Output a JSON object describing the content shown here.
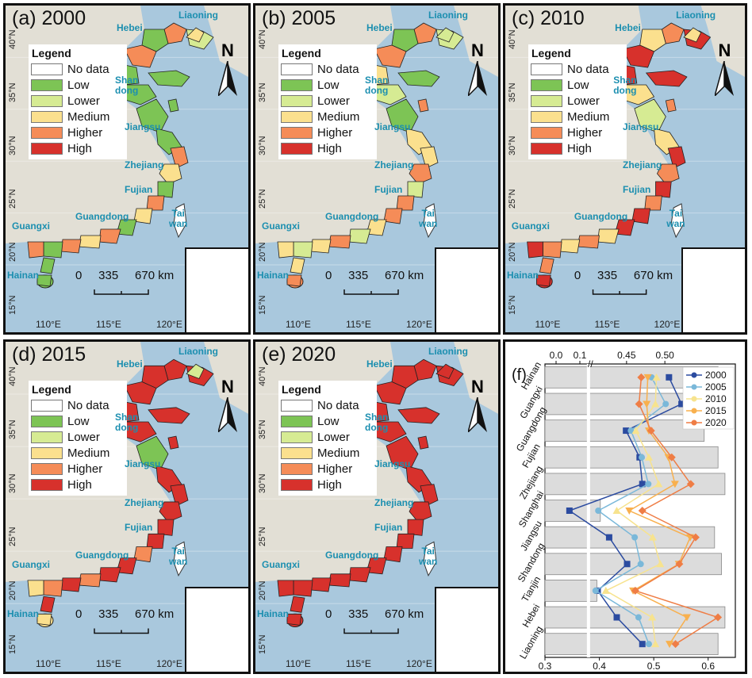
{
  "legend": {
    "title": "Legend",
    "items": [
      {
        "label": "No data",
        "color": "#ffffff"
      },
      {
        "label": "Low",
        "color": "#7dc455"
      },
      {
        "label": "Lower",
        "color": "#d6eb93"
      },
      {
        "label": "Medium",
        "color": "#fbe08e"
      },
      {
        "label": "Higher",
        "color": "#f58c58"
      },
      {
        "label": "High",
        "color": "#d7312c"
      }
    ]
  },
  "maps": [
    {
      "title": "(a) 2000"
    },
    {
      "title": "(b) 2005"
    },
    {
      "title": "(c) 2010"
    },
    {
      "title": "(d) 2015"
    },
    {
      "title": "(e) 2020"
    }
  ],
  "provinces": {
    "liaoning": "Liaoning",
    "hebei": "Hebei",
    "shandong": "Shan\ndong",
    "jiangsu": "Jiangsu",
    "zhejiang": "Zhejiang",
    "fujian": "Fujian",
    "guangdong": "Guangdong",
    "guangxi": "Guangxi",
    "taiwan": "Tai\nwan",
    "hainan": "Hainan"
  },
  "map_axes": {
    "lat_labels": [
      "40°N",
      "35°N",
      "30°N",
      "25°N",
      "20°N",
      "15°N"
    ],
    "lon_labels": [
      "110°E",
      "115°E",
      "120°E"
    ]
  },
  "scalebar": {
    "ticks": [
      "0",
      "335",
      "670"
    ],
    "unit": "km"
  },
  "north_label": "N",
  "map_segment_colors": {
    "2000": [
      "#f58c58",
      "#d6eb93",
      "#7dc455",
      "#f58c58",
      "#7dc455",
      "#7dc455",
      "#7dc455",
      "#7dc455",
      "#7dc455",
      "#f58c58",
      "#fbe08e",
      "#7dc455",
      "#f58c58",
      "#fbe08e",
      "#7dc455",
      "#f58c58",
      "#fbe08e",
      "#f58c58",
      "#7dc455",
      "#f58c58",
      "#7dc455",
      "#7dc455",
      "#fbe08e",
      "#7dc455"
    ],
    "2005": [
      "#f58c58",
      "#d6eb93",
      "#7dc455",
      "#f58c58",
      "#fbe08e",
      "#7dc455",
      "#d6eb93",
      "#7dc455",
      "#fbe08e",
      "#fbe08e",
      "#f58c58",
      "#d6eb93",
      "#f58c58",
      "#f58c58",
      "#fbe08e",
      "#d6eb93",
      "#f58c58",
      "#fbe08e",
      "#d6eb93",
      "#fbe08e",
      "#fbe08e",
      "#f58c58",
      "#d6eb93",
      "#f58c58"
    ],
    "2010": [
      "#f58c58",
      "#d7312c",
      "#fbe08e",
      "#d7312c",
      "#d7312c",
      "#d7312c",
      "#fbe08e",
      "#d6eb93",
      "#fbe08e",
      "#d7312c",
      "#f58c58",
      "#d7312c",
      "#f58c58",
      "#d7312c",
      "#d7312c",
      "#fbe08e",
      "#f58c58",
      "#fbe08e",
      "#f58c58",
      "#d7312c",
      "#f58c58",
      "#d7312c",
      "#fbe08e",
      "#f58c58"
    ],
    "2015": [
      "#d7312c",
      "#d7312c",
      "#d7312c",
      "#d7312c",
      "#d7312c",
      "#d7312c",
      "#d7312c",
      "#7dc455",
      "#d7312c",
      "#d7312c",
      "#d7312c",
      "#d7312c",
      "#d7312c",
      "#f58c58",
      "#d7312c",
      "#d7312c",
      "#f58c58",
      "#d7312c",
      "#f58c58",
      "#fbe08e",
      "#d7312c",
      "#fbe08e",
      "#d6eb93",
      "#d7312c"
    ],
    "2020": [
      "#d7312c",
      "#d7312c",
      "#d7312c",
      "#d7312c",
      "#d7312c",
      "#d7312c",
      "#d7312c",
      "#d7312c",
      "#d7312c",
      "#d7312c",
      "#d7312c",
      "#d7312c",
      "#d7312c",
      "#d7312c",
      "#d7312c",
      "#d7312c",
      "#d7312c",
      "#d7312c",
      "#d7312c",
      "#d7312c",
      "#d7312c",
      "#d7312c",
      "#d7312c",
      "#d7312c"
    ]
  },
  "chart_data": {
    "type": "scatter",
    "title": "(f)",
    "categories": [
      "Hainan",
      "Guangxi",
      "Guangdong",
      "Fujian",
      "Zhejiang",
      "Shanghai",
      "Jiangsu",
      "Shandong",
      "Tianjin",
      "Hebei",
      "Liaoning"
    ],
    "bottom_axis": {
      "range": [
        0.3,
        0.65
      ],
      "ticks": [
        "0.3",
        "0.4",
        "0.5",
        "0.6"
      ]
    },
    "top_axis": {
      "ticks": [
        "0.0",
        "0.1",
        "0.45",
        "0.50"
      ],
      "broken": true
    },
    "bars_top_axis": [
      0.5,
      0.5,
      0.46,
      0.5,
      0.52,
      0.16,
      0.49,
      0.51,
      0.15,
      0.52,
      0.5
    ],
    "series": [
      {
        "name": "2000",
        "color": "#2b4ba0",
        "marker": "square",
        "values": [
          0.528,
          0.551,
          0.449,
          0.474,
          0.479,
          0.345,
          0.418,
          0.451,
          0.397,
          0.432,
          0.479
        ]
      },
      {
        "name": "2005",
        "color": "#7ab8d9",
        "marker": "circle",
        "values": [
          0.496,
          0.522,
          0.458,
          0.478,
          0.49,
          0.398,
          0.465,
          0.476,
          0.393,
          0.472,
          0.491
        ]
      },
      {
        "name": "2010",
        "color": "#f7e38e",
        "marker": "triangle-up",
        "values": [
          0.505,
          0.503,
          0.467,
          0.491,
          0.509,
          0.432,
          0.498,
          0.512,
          0.412,
          0.497,
          0.503
        ]
      },
      {
        "name": "2015",
        "color": "#f8b04e",
        "marker": "triangle-down",
        "values": [
          0.489,
          0.487,
          0.491,
          0.527,
          0.539,
          0.455,
          0.567,
          0.546,
          0.462,
          0.561,
          0.529
        ]
      },
      {
        "name": "2020",
        "color": "#ef7d45",
        "marker": "diamond",
        "values": [
          0.477,
          0.473,
          0.495,
          0.533,
          0.568,
          0.479,
          0.577,
          0.547,
          0.466,
          0.618,
          0.54
        ]
      }
    ],
    "legend_position": "top-right"
  }
}
